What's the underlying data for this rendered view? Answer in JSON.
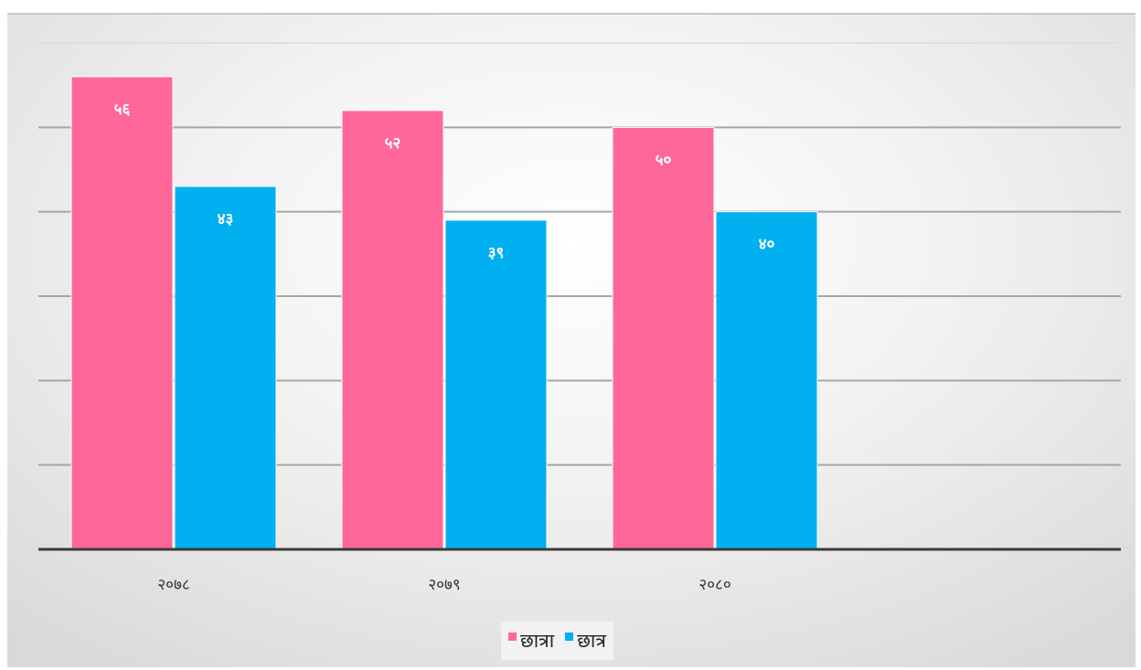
{
  "chart_data": {
    "type": "bar",
    "categories": [
      "२०७८",
      "२०७९",
      "२०८०"
    ],
    "series": [
      {
        "name": "छात्रा",
        "values": [
          56,
          52,
          50
        ],
        "labels": [
          "५६",
          "५२",
          "५०"
        ],
        "color": "#ff6699"
      },
      {
        "name": "छात्र",
        "values": [
          43,
          39,
          40
        ],
        "labels": [
          "४३",
          "३९",
          "४०"
        ],
        "color": "#00b0f0"
      }
    ],
    "ylim": [
      0,
      60
    ],
    "grid": true,
    "legend_position": "bottom",
    "title": "",
    "xlabel": "",
    "ylabel": ""
  }
}
